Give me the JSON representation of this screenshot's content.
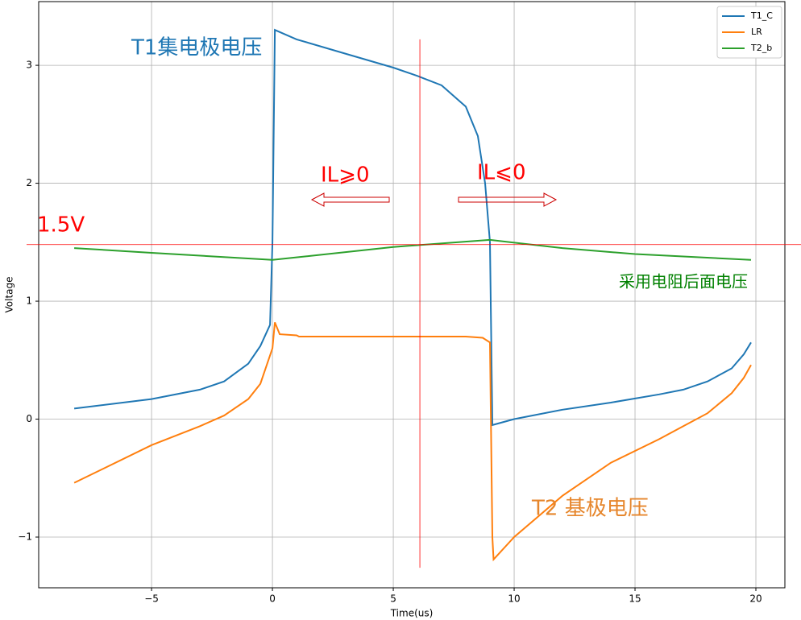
{
  "chart_data": {
    "type": "line",
    "xlabel": "Time(us)",
    "ylabel": "Voltage",
    "xlim": [
      -9.67,
      21.2
    ],
    "ylim": [
      -1.43,
      3.54
    ],
    "xticks": [
      {
        "value": -5,
        "label": "−5"
      },
      0,
      5,
      10,
      15,
      20
    ],
    "yticks": [
      {
        "value": -1,
        "label": "−1"
      },
      0,
      1,
      2,
      3
    ],
    "grid": true,
    "legend": "upper right",
    "series": [
      {
        "name": "T1_C",
        "color": "#1f77b4",
        "x": [
          -8.2,
          -5,
          -3,
          -2,
          -1,
          -0.5,
          -0.1,
          0,
          0.1,
          1,
          3,
          5,
          6,
          7,
          8,
          8.5,
          8.8,
          9,
          9.1,
          10,
          12,
          14,
          16,
          17,
          18,
          19,
          19.5,
          19.8
        ],
        "values": [
          0.09,
          0.17,
          0.25,
          0.32,
          0.47,
          0.62,
          0.8,
          1.5,
          3.3,
          3.22,
          3.1,
          2.98,
          2.91,
          2.83,
          2.65,
          2.4,
          2.0,
          1.5,
          -0.05,
          0.0,
          0.08,
          0.14,
          0.21,
          0.25,
          0.32,
          0.43,
          0.55,
          0.65
        ]
      },
      {
        "name": "LR",
        "color": "#ff7f0e",
        "x": [
          -8.2,
          -7,
          -5,
          -3,
          -2,
          -1,
          -0.5,
          0,
          0.1,
          0.3,
          1,
          1.1,
          5,
          8,
          8.7,
          9.0,
          9.1,
          9.15,
          10,
          12,
          14,
          16,
          17,
          18,
          19,
          19.5,
          19.8
        ],
        "values": [
          -0.54,
          -0.42,
          -0.22,
          -0.06,
          0.03,
          0.17,
          0.3,
          0.6,
          0.82,
          0.72,
          0.71,
          0.7,
          0.7,
          0.7,
          0.69,
          0.65,
          -1.0,
          -1.19,
          -1.0,
          -0.65,
          -0.37,
          -0.17,
          -0.06,
          0.05,
          0.22,
          0.35,
          0.46
        ]
      },
      {
        "name": "T2_b",
        "color": "#2ca02c",
        "x": [
          -8.2,
          -5,
          0,
          5,
          9,
          12,
          15,
          19.8
        ],
        "values": [
          1.45,
          1.41,
          1.35,
          1.46,
          1.52,
          1.45,
          1.4,
          1.35
        ]
      }
    ],
    "reference_lines": {
      "color": "red",
      "hline": 1.48,
      "vline": 6.1,
      "vline_range": [
        -1.26,
        3.22
      ]
    },
    "annotations": [
      "T1集电极电压",
      "IL⩾0",
      "IL⩽0",
      "1.5V",
      "采用电阻后面电压",
      "T2 基极电压"
    ]
  }
}
